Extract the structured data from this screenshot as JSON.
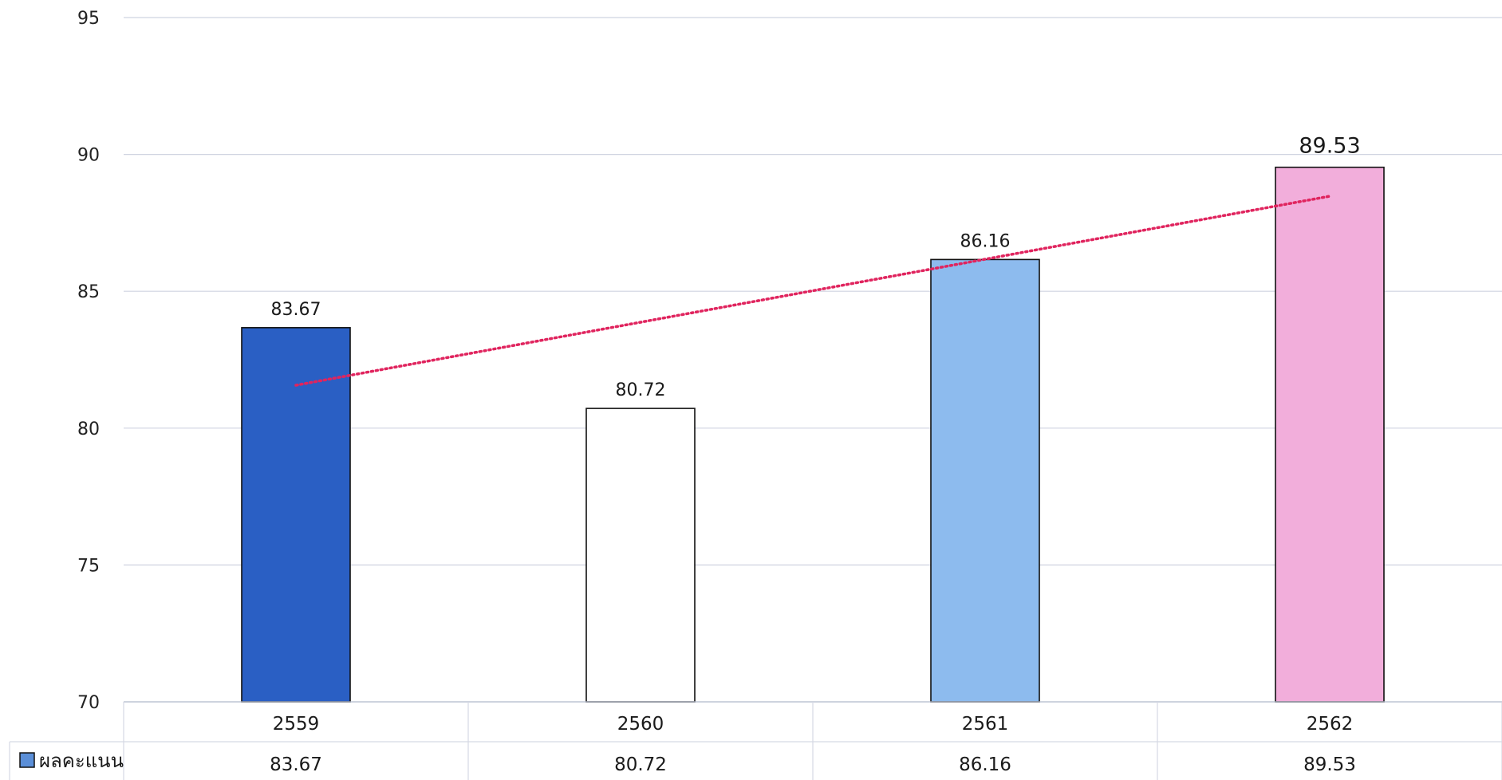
{
  "chart_data": {
    "type": "bar",
    "categories": [
      "2559",
      "2560",
      "2561",
      "2562"
    ],
    "series": [
      {
        "name": "ผลคะแนน",
        "values": [
          83.67,
          80.72,
          86.16,
          89.53
        ]
      }
    ],
    "value_labels": [
      "83.67",
      "80.72",
      "86.16",
      "89.53"
    ],
    "bar_colors": [
      "#2a5fc4",
      "#ffffff",
      "#8dbbee",
      "#f2aedb"
    ],
    "ylim": [
      70,
      95
    ],
    "yticks": [
      "70",
      "75",
      "80",
      "85",
      "90",
      "95"
    ],
    "trendline": {
      "style": "dotted",
      "color": "#e0245e",
      "type": "linear"
    },
    "grid": true,
    "data_table": true,
    "legend_key_color": "#5b8fd8",
    "title": "",
    "xlabel": "",
    "ylabel": ""
  }
}
